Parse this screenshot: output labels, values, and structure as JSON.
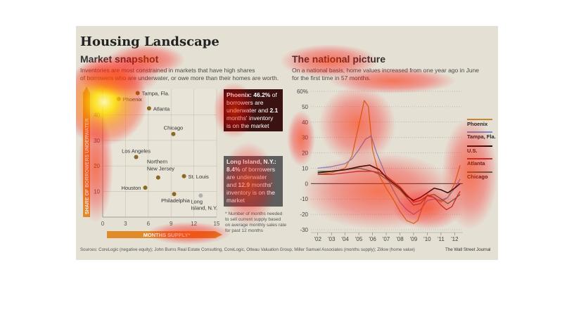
{
  "title": "Housing Landscape",
  "left": {
    "title": "Market snapshot",
    "subtitle_line1": "Inventories are most constrained in markets that have high shares",
    "subtitle_line2": "of borrowers who are underwater, or owe more than their homes are worth.",
    "callout_phoenix": {
      "lines": [
        [
          {
            "text": "Phoenix: 46.2%",
            "bold": true
          },
          {
            "text": " of",
            "bold": false
          }
        ],
        [
          {
            "text": "borrowers are",
            "bold": false
          }
        ],
        [
          {
            "text": "underwater and ",
            "bold": false
          },
          {
            "text": "2.1",
            "bold": true
          }
        ],
        [
          {
            "text": "months' inventory",
            "bold": false
          }
        ],
        [
          {
            "text": "is on the market",
            "bold": false
          }
        ]
      ]
    },
    "callout_long_island": {
      "lines": [
        [
          {
            "text": "Long Island, N.Y.:",
            "bold": true
          }
        ],
        [
          {
            "text": "8.4%",
            "bold": true
          },
          {
            "text": " of borrowers",
            "bold": false
          }
        ],
        [
          {
            "text": "are underwater",
            "bold": false
          }
        ],
        [
          {
            "text": "and ",
            "bold": false
          },
          {
            "text": "12.9",
            "bold": true
          },
          {
            "text": " months'",
            "bold": false
          }
        ],
        [
          {
            "text": "inventory is on the",
            "bold": false
          }
        ],
        [
          {
            "text": "market",
            "bold": false
          }
        ]
      ]
    },
    "footnote": "* Number of months needed to sell current supply based on average monthly sales rate for past 12 months"
  },
  "right": {
    "title": "The national picture",
    "subtitle_line1": "On a national basis, home values increased from one year ago in June",
    "subtitle_line2": "for the first time in 57 months."
  },
  "footer": {
    "sources": "Sources: CoreLogic (negative equity); John Burns Real Estate Consulting, CoreLogic, Otteau Valuation Group, Miller Samuel Associates (months supply); Zillow (home value)",
    "credit": "The Wall Street Journal"
  },
  "colors": {
    "phoenix": "#c8862a",
    "tampa": "#7d8cc4",
    "us": "#111111",
    "atlanta": "#b03a3a",
    "chicago": "#3f7a55",
    "dot": "#8a6a22",
    "dot_long_island": "#b0b0b0",
    "axis_band": "#e08a2a"
  },
  "chart_data": [
    {
      "type": "scatter",
      "title": "Market snapshot",
      "xlabel": "MONTHS SUPPLY*",
      "ylabel": "SHARE OF BORROWERS UNDERWATER",
      "xlim": [
        0,
        15
      ],
      "ylim": [
        0,
        50
      ],
      "xticks": [
        0,
        3,
        6,
        9,
        12,
        15
      ],
      "yticks": [
        10,
        20,
        30,
        40
      ],
      "grid": true,
      "points": [
        {
          "label": "Phoenix",
          "x": 2.1,
          "y": 46.2,
          "label_side": "right"
        },
        {
          "label": "Tampa, Fla.",
          "x": 4.6,
          "y": 48.5,
          "label_side": "right"
        },
        {
          "label": "Atlanta",
          "x": 6.1,
          "y": 42.5,
          "label_side": "right"
        },
        {
          "label": "Chicago",
          "x": 9.3,
          "y": 32.5,
          "label_side": "above"
        },
        {
          "label": "Los Angeles",
          "x": 4.4,
          "y": 23.5,
          "label_side": "above"
        },
        {
          "label": "Northern New Jersey",
          "x": 7.3,
          "y": 15.5,
          "label_side": "above"
        },
        {
          "label": "St. Louis",
          "x": 10.7,
          "y": 16.0,
          "label_side": "right"
        },
        {
          "label": "Houston",
          "x": 5.6,
          "y": 11.5,
          "label_side": "left"
        },
        {
          "label": "Philadelphia",
          "x": 9.4,
          "y": 9.0,
          "label_side": "below"
        },
        {
          "label": "Long Island, N.Y.",
          "x": 12.9,
          "y": 8.4,
          "label_side": "below"
        }
      ]
    },
    {
      "type": "line",
      "title": "The national picture",
      "x_tick_labels": [
        "'02",
        "'03",
        "'04",
        "'05",
        "'06",
        "'07",
        "'08",
        "'09",
        "'10",
        "'11",
        "'12"
      ],
      "xlim": [
        2001.5,
        2012.6
      ],
      "ylim": [
        -30,
        60
      ],
      "yticks": [
        -30,
        -20,
        -10,
        0,
        10,
        20,
        30,
        40,
        50,
        60
      ],
      "ytick_labels": [
        "-30",
        "-20",
        "-10",
        "0",
        "10",
        "20",
        "30",
        "40",
        "50",
        "60%"
      ],
      "series": [
        {
          "name": "Phoenix",
          "color_key": "phoenix",
          "x": [
            2002,
            2003,
            2004,
            2004.5,
            2005,
            2005.4,
            2005.7,
            2006,
            2006.5,
            2007,
            2007.5,
            2008,
            2008.5,
            2009,
            2009.3,
            2009.7,
            2010,
            2010.5,
            2011,
            2011.5,
            2012,
            2012.4
          ],
          "y": [
            6,
            7,
            10,
            18,
            38,
            54,
            50,
            22,
            5,
            -3,
            -10,
            -18,
            -24,
            -26,
            -24,
            -14,
            -7,
            -9,
            -12,
            -9,
            0,
            12
          ]
        },
        {
          "name": "Tampa, Fla.",
          "color_key": "tampa",
          "x": [
            2002,
            2003,
            2004,
            2004.5,
            2005,
            2005.5,
            2005.9,
            2006.3,
            2007,
            2007.5,
            2008,
            2008.5,
            2009,
            2009.5,
            2010,
            2010.5,
            2011,
            2011.5,
            2012,
            2012.4
          ],
          "y": [
            10,
            11,
            13,
            16,
            22,
            29,
            31,
            20,
            5,
            -4,
            -12,
            -17,
            -20,
            -17,
            -11,
            -10,
            -11,
            -9,
            -3,
            3
          ]
        },
        {
          "name": "U.S.",
          "color_key": "us",
          "x": [
            2002,
            2003,
            2004,
            2005,
            2005.8,
            2006.5,
            2007,
            2008,
            2008.5,
            2009,
            2009.5,
            2010,
            2010.5,
            2011,
            2011.5,
            2012,
            2012.4
          ],
          "y": [
            7,
            8,
            9,
            11,
            12,
            9,
            4,
            -3,
            -8,
            -11,
            -9,
            -6,
            -3,
            -4,
            -6,
            -3,
            0
          ]
        },
        {
          "name": "Atlanta",
          "color_key": "atlanta",
          "x": [
            2002,
            2003,
            2004,
            2005,
            2006,
            2006.5,
            2007,
            2008,
            2008.5,
            2009,
            2009.5,
            2010,
            2010.5,
            2011,
            2011.4,
            2011.8,
            2012.2,
            2012.4
          ],
          "y": [
            6,
            6,
            7,
            8,
            8,
            7,
            5,
            -2,
            -7,
            -12,
            -11,
            -8,
            -9,
            -14,
            -17,
            -15,
            -8,
            -5
          ]
        },
        {
          "name": "Chicago",
          "color_key": "chicago",
          "x": [
            2002,
            2003,
            2004,
            2005,
            2006,
            2006.5,
            2007,
            2008,
            2008.5,
            2009,
            2009.5,
            2010,
            2010.5,
            2011,
            2011.5,
            2012,
            2012.4
          ],
          "y": [
            8,
            8,
            9,
            10,
            8,
            6,
            3,
            -4,
            -9,
            -14,
            -13,
            -8,
            -7,
            -10,
            -13,
            -10,
            -7
          ]
        }
      ]
    }
  ]
}
